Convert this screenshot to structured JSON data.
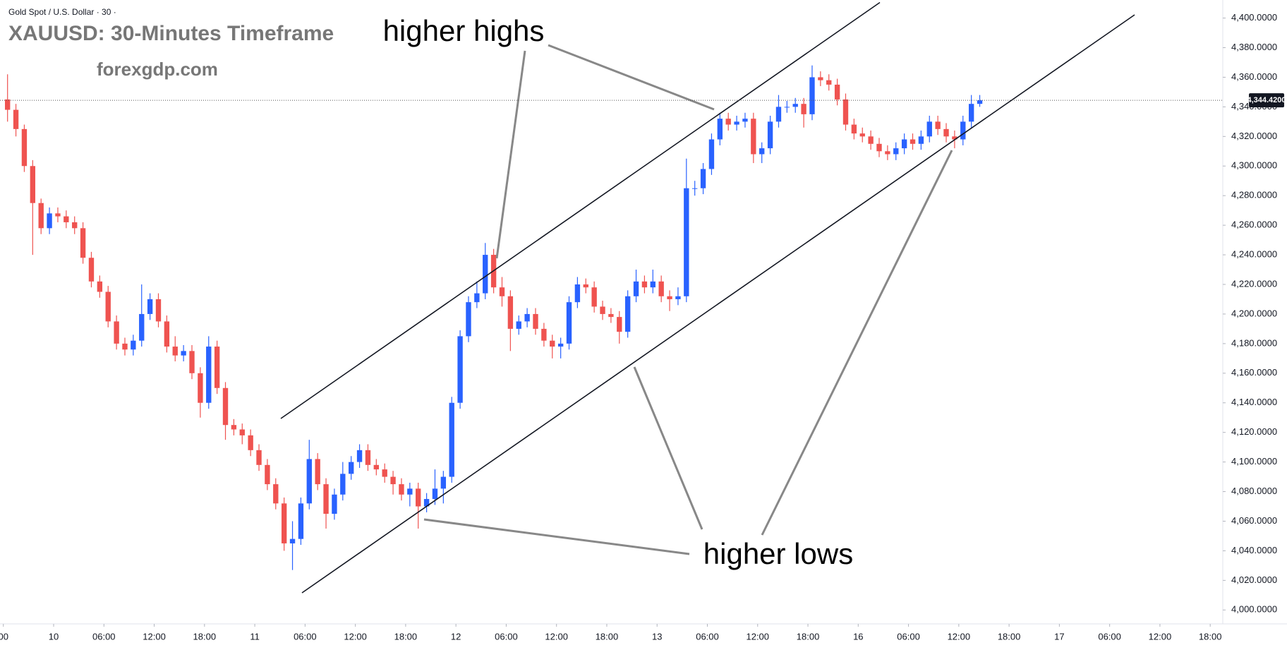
{
  "chart_data": {
    "type": "candlestick",
    "header": "Gold Spot / U.S. Dollar · 30 ·",
    "title": "XAUUSD: 30-Minutes Timeframe",
    "subtitle": "forexgdp.com",
    "annotations": [
      "higher highs",
      "higher lows"
    ],
    "up_color": "#2962ff",
    "down_color": "#ef5350",
    "open": [
      4345,
      4338,
      4325,
      4300,
      4275,
      4258,
      4268,
      4266,
      4262,
      4258,
      4238,
      4222,
      4215,
      4195,
      4180,
      4176,
      4182,
      4200,
      4210,
      4195,
      4178,
      4172,
      4175,
      4160,
      4140,
      4178,
      4150,
      4125,
      4122,
      4118,
      4108,
      4098,
      4085,
      4072,
      4045,
      4048,
      4072,
      4102,
      4085,
      4065,
      4078,
      4092,
      4100,
      4108,
      4098,
      4095,
      4090,
      4085,
      4078,
      4082,
      4070,
      4075,
      4082,
      4090,
      4140,
      4185,
      4208,
      4214,
      4240,
      4218,
      4212,
      4190,
      4195,
      4200,
      4190,
      4182,
      4178,
      4180,
      4208,
      4220,
      4218,
      4205,
      4200,
      4198,
      4188,
      4212,
      4222,
      4218,
      4222,
      4212,
      4210,
      4212,
      4285,
      4285,
      4298,
      4318,
      4332,
      4328,
      4330,
      4332,
      4308,
      4312,
      4330,
      4340,
      4340,
      4342,
      4335,
      4360,
      4358,
      4355,
      4345,
      4328,
      4322,
      4320,
      4315,
      4310,
      4308,
      4312,
      4318,
      4315,
      4320,
      4330,
      4325,
      4320,
      4318,
      4330,
      4342
    ],
    "high": [
      4362,
      4342,
      4328,
      4304,
      4278,
      4272,
      4272,
      4270,
      4266,
      4262,
      4242,
      4226,
      4219,
      4199,
      4184,
      4186,
      4220,
      4214,
      4214,
      4199,
      4185,
      4179,
      4179,
      4164,
      4185,
      4182,
      4154,
      4129,
      4126,
      4122,
      4112,
      4102,
      4089,
      4076,
      4060,
      4076,
      4115,
      4106,
      4089,
      4082,
      4100,
      4104,
      4112,
      4112,
      4102,
      4099,
      4094,
      4089,
      4086,
      4086,
      4079,
      4095,
      4094,
      4144,
      4189,
      4212,
      4222,
      4248,
      4244,
      4225,
      4216,
      4199,
      4204,
      4204,
      4194,
      4186,
      4184,
      4212,
      4225,
      4224,
      4222,
      4209,
      4204,
      4202,
      4216,
      4230,
      4226,
      4230,
      4226,
      4216,
      4218,
      4305,
      4290,
      4302,
      4322,
      4336,
      4336,
      4334,
      4336,
      4336,
      4316,
      4334,
      4348,
      4344,
      4346,
      4346,
      4368,
      4364,
      4362,
      4359,
      4349,
      4332,
      4326,
      4324,
      4319,
      4314,
      4316,
      4322,
      4322,
      4324,
      4334,
      4334,
      4329,
      4324,
      4334,
      4348,
      4348
    ],
    "low": [
      4330,
      4320,
      4296,
      4240,
      4254,
      4254,
      4262,
      4258,
      4254,
      4234,
      4218,
      4211,
      4191,
      4176,
      4172,
      4172,
      4178,
      4196,
      4191,
      4174,
      4168,
      4168,
      4156,
      4130,
      4136,
      4146,
      4115,
      4118,
      4112,
      4104,
      4094,
      4081,
      4068,
      4040,
      4027,
      4044,
      4068,
      4081,
      4055,
      4061,
      4074,
      4088,
      4096,
      4094,
      4091,
      4086,
      4078,
      4074,
      4070,
      4055,
      4066,
      4071,
      4072,
      4086,
      4136,
      4181,
      4204,
      4210,
      4214,
      4205,
      4175,
      4186,
      4191,
      4186,
      4178,
      4170,
      4170,
      4176,
      4204,
      4214,
      4201,
      4196,
      4194,
      4180,
      4184,
      4208,
      4214,
      4214,
      4208,
      4202,
      4206,
      4208,
      4280,
      4281,
      4294,
      4314,
      4324,
      4324,
      4326,
      4302,
      4302,
      4308,
      4326,
      4336,
      4336,
      4326,
      4331,
      4354,
      4351,
      4341,
      4324,
      4318,
      4316,
      4311,
      4306,
      4304,
      4304,
      4308,
      4311,
      4311,
      4316,
      4321,
      4316,
      4312,
      4314,
      4326,
      4340
    ],
    "close": [
      4338,
      4325,
      4300,
      4275,
      4258,
      4268,
      4266,
      4262,
      4258,
      4238,
      4222,
      4215,
      4195,
      4180,
      4176,
      4182,
      4200,
      4210,
      4195,
      4178,
      4172,
      4175,
      4160,
      4140,
      4178,
      4150,
      4125,
      4122,
      4118,
      4108,
      4098,
      4085,
      4072,
      4045,
      4048,
      4072,
      4102,
      4085,
      4065,
      4078,
      4092,
      4100,
      4108,
      4098,
      4095,
      4090,
      4085,
      4078,
      4082,
      4070,
      4075,
      4082,
      4090,
      4140,
      4185,
      4208,
      4214,
      4240,
      4218,
      4212,
      4190,
      4195,
      4200,
      4190,
      4182,
      4178,
      4180,
      4208,
      4220,
      4218,
      4205,
      4200,
      4198,
      4188,
      4212,
      4222,
      4218,
      4222,
      4212,
      4210,
      4212,
      4285,
      4285,
      4298,
      4318,
      4332,
      4328,
      4330,
      4332,
      4308,
      4312,
      4330,
      4340,
      4340,
      4342,
      4335,
      4360,
      4358,
      4355,
      4345,
      4328,
      4322,
      4320,
      4315,
      4310,
      4308,
      4312,
      4318,
      4315,
      4320,
      4330,
      4325,
      4320,
      4318,
      4330,
      4342,
      4344.42
    ],
    "last_price": {
      "value": 4344.42,
      "label": "4,344.4200"
    },
    "xlim": [
      -0.4,
      145.5
    ],
    "xticks": [
      {
        "value": 0,
        "label": "00"
      },
      {
        "value": 6,
        "label": "10"
      },
      {
        "value": 12,
        "label": "06:00"
      },
      {
        "value": 18,
        "label": "12:00"
      },
      {
        "value": 24,
        "label": "18:00"
      },
      {
        "value": 30,
        "label": "11"
      },
      {
        "value": 36,
        "label": "06:00"
      },
      {
        "value": 42,
        "label": "12:00"
      },
      {
        "value": 48,
        "label": "18:00"
      },
      {
        "value": 54,
        "label": "12"
      },
      {
        "value": 60,
        "label": "06:00"
      },
      {
        "value": 66,
        "label": "12:00"
      },
      {
        "value": 72,
        "label": "18:00"
      },
      {
        "value": 78,
        "label": "13"
      },
      {
        "value": 84,
        "label": "06:00"
      },
      {
        "value": 90,
        "label": "12:00"
      },
      {
        "value": 96,
        "label": "18:00"
      },
      {
        "value": 102,
        "label": "16"
      },
      {
        "value": 108,
        "label": "06:00"
      },
      {
        "value": 114,
        "label": "12:00"
      },
      {
        "value": 120,
        "label": "18:00"
      },
      {
        "value": 126,
        "label": "17"
      },
      {
        "value": 132,
        "label": "06:00"
      },
      {
        "value": 138,
        "label": "12:00"
      },
      {
        "value": 144,
        "label": "18:00"
      }
    ],
    "ylim": [
      3990.6,
      4412.2
    ],
    "yticks": [
      {
        "value": 4000,
        "label": "4,000.0000"
      },
      {
        "value": 4020,
        "label": "4,020.0000"
      },
      {
        "value": 4040,
        "label": "4,040.0000"
      },
      {
        "value": 4060,
        "label": "4,060.0000"
      },
      {
        "value": 4080,
        "label": "4,080.0000"
      },
      {
        "value": 4100,
        "label": "4,100.0000"
      },
      {
        "value": 4120,
        "label": "4,120.0000"
      },
      {
        "value": 4140,
        "label": "4,140.0000"
      },
      {
        "value": 4160,
        "label": "4,160.0000"
      },
      {
        "value": 4180,
        "label": "4,180.0000"
      },
      {
        "value": 4200,
        "label": "4,200.0000"
      },
      {
        "value": 4220,
        "label": "4,220.0000"
      },
      {
        "value": 4240,
        "label": "4,240.0000"
      },
      {
        "value": 4260,
        "label": "4,260.0000"
      },
      {
        "value": 4280,
        "label": "4,280.0000"
      },
      {
        "value": 4300,
        "label": "4,300.0000"
      },
      {
        "value": 4320,
        "label": "4,320.0000"
      },
      {
        "value": 4340,
        "label": "4,340.0000"
      },
      {
        "value": 4360,
        "label": "4,360.0000"
      },
      {
        "value": 4380,
        "label": "4,380.0000"
      },
      {
        "value": 4400,
        "label": "4,400.0000"
      }
    ]
  }
}
